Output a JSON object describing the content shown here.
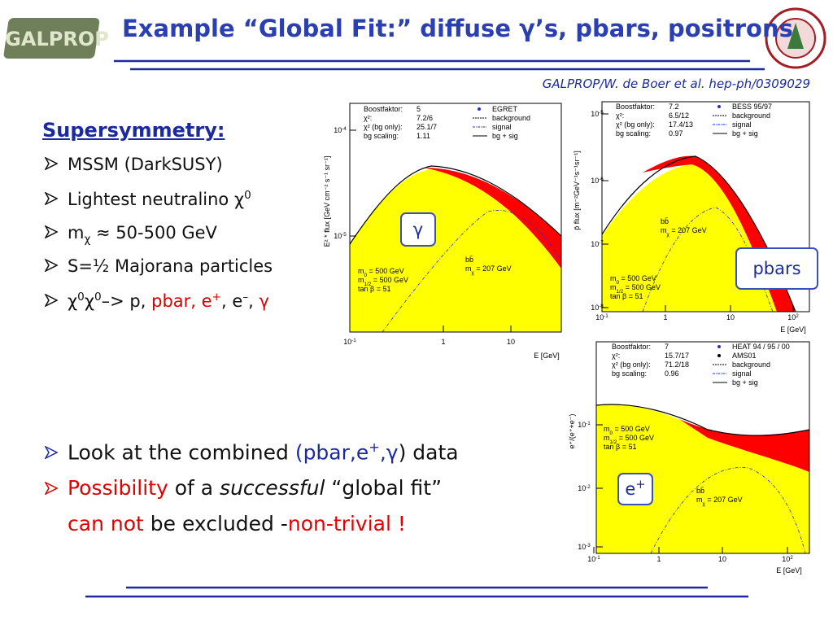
{
  "header": {
    "logo": "GALPROP",
    "title": "Example “Global Fit:” diffuse γ’s, pbars, positrons",
    "reference": "GALPROP/W. de Boer et al. hep-ph/0309029"
  },
  "bullets": {
    "heading": "Supersymmetry:",
    "items": [
      [
        {
          "t": "MSSM (DarkSUSY)"
        }
      ],
      [
        {
          "t": "Lightest neutralino χ"
        },
        {
          "t": "0",
          "sup": 1
        }
      ],
      [
        {
          "t": "m"
        },
        {
          "t": "χ",
          "sub": 1
        },
        {
          "t": " ≈ 50-500 GeV"
        }
      ],
      [
        {
          "t": "S=½ Majorana particles"
        }
      ],
      [
        {
          "t": "χ"
        },
        {
          "t": "0",
          "sup": 1
        },
        {
          "t": "χ"
        },
        {
          "t": "0",
          "sup": 1
        },
        {
          "t": "–> p, "
        },
        {
          "t": "pbar, e",
          "red": 1
        },
        {
          "t": "+",
          "sup": 1,
          "red": 1
        },
        {
          "t": ", e"
        },
        {
          "t": "–",
          "sup": 1
        },
        {
          "t": ", "
        },
        {
          "t": "γ",
          "red": 1
        }
      ]
    ]
  },
  "conclusions": [
    [
      {
        "t": "Look at the combined "
      },
      {
        "t": "(pbar,e",
        "blue": 1
      },
      {
        "t": "+",
        "sup": 1,
        "blue": 1
      },
      {
        "t": ",γ",
        "blue": 1
      },
      {
        "t": ") data"
      }
    ],
    [
      {
        "t": "Possibility",
        "red": 1
      },
      {
        "t": " of a "
      },
      {
        "t": "successful",
        "italic": 1
      },
      {
        "t": " “global fit”"
      },
      {
        "t": "can not",
        "red": 1
      },
      {
        "t": " be excluded -"
      },
      {
        "t": "non-trivial !",
        "red": 1
      }
    ]
  ],
  "plots": [
    {
      "ylabel": "E² * flux [GeV cm⁻² s⁻¹ sr⁻¹]",
      "xlabel": "E [GeV]",
      "badge": [
        {
          "t": "γ"
        }
      ],
      "yticks": [
        [
          {
            "t": "10"
          },
          {
            "t": "-4",
            "sup": 1
          }
        ],
        [
          {
            "t": "10"
          },
          {
            "t": "-5",
            "sup": 1
          }
        ]
      ],
      "xticks": [
        [
          {
            "t": "10"
          },
          {
            "t": "-1",
            "sup": 1
          }
        ],
        [
          {
            "t": "1"
          }
        ],
        [
          {
            "t": "10"
          }
        ]
      ],
      "fit": [
        [
          "Boostfaktor:",
          "5"
        ],
        [
          "χ²:",
          "7.2/6"
        ],
        [
          "χ² (bg only):",
          "25.1/7"
        ],
        [
          "bg scaling:",
          "1.11"
        ]
      ],
      "legend": [
        "EGRET",
        "background",
        "signal",
        "bg + sig"
      ],
      "params": [
        [
          {
            "t": "m"
          },
          {
            "t": "0",
            "sub": 1
          },
          {
            "t": " = 500 GeV"
          }
        ],
        [
          {
            "t": "m"
          },
          {
            "t": "1/2",
            "sub": 1
          },
          {
            "t": " = 500 GeV"
          }
        ],
        [
          {
            "t": "tan β = 51"
          }
        ]
      ],
      "channel": [
        [
          {
            "t": "bb̄"
          }
        ],
        [
          {
            "t": "m"
          },
          {
            "t": "χ",
            "sub": 1
          },
          {
            "t": " = 207 GeV"
          }
        ]
      ]
    },
    {
      "ylabel": "p̄ flux [m⁻²GeV⁻¹s⁻¹sr⁻¹]",
      "xlabel": "E [GeV]",
      "badge": [
        {
          "t": "pbars"
        }
      ],
      "yticks": [
        [
          {
            "t": "10"
          },
          {
            "t": "-5",
            "sup": 1
          }
        ],
        [
          {
            "t": "10"
          },
          {
            "t": "-6",
            "sup": 1
          }
        ],
        [
          {
            "t": "10"
          },
          {
            "t": "-7",
            "sup": 1
          }
        ],
        [
          {
            "t": "10"
          },
          {
            "t": "-8",
            "sup": 1
          }
        ]
      ],
      "xticks": [
        [
          {
            "t": "10"
          },
          {
            "t": "-1",
            "sup": 1
          }
        ],
        [
          {
            "t": "1"
          }
        ],
        [
          {
            "t": "10"
          }
        ],
        [
          {
            "t": "10"
          },
          {
            "t": "2",
            "sup": 1
          }
        ]
      ],
      "fit": [
        [
          "Boostfaktor:",
          "7.2"
        ],
        [
          "χ²:",
          "6.5/12"
        ],
        [
          "χ² (bg only):",
          "17.4/13"
        ],
        [
          "bg scaling:",
          "0.97"
        ]
      ],
      "legend": [
        "BESS 95/97",
        "background",
        "signal",
        "bg + sig"
      ],
      "params": [
        [
          {
            "t": "m"
          },
          {
            "t": "0",
            "sub": 1
          },
          {
            "t": " = 500 GeV"
          }
        ],
        [
          {
            "t": "m"
          },
          {
            "t": "1/2",
            "sub": 1
          },
          {
            "t": " = 500 GeV"
          }
        ],
        [
          {
            "t": "tan β = 51"
          }
        ]
      ],
      "channel": [
        [
          {
            "t": "bb̄"
          }
        ],
        [
          {
            "t": "m"
          },
          {
            "t": "χ",
            "sub": 1
          },
          {
            "t": " = 207 GeV"
          }
        ]
      ]
    },
    {
      "ylabel": "e⁺/(e⁺+e⁻)",
      "xlabel": "E [GeV]",
      "badge": [
        {
          "t": "e"
        },
        {
          "t": "+",
          "sup": 1
        }
      ],
      "yticks": [
        [
          {
            "t": "10"
          },
          {
            "t": "-1",
            "sup": 1
          }
        ],
        [
          {
            "t": "10"
          },
          {
            "t": "-2",
            "sup": 1
          }
        ],
        [
          {
            "t": "10"
          },
          {
            "t": "-3",
            "sup": 1
          }
        ]
      ],
      "xticks": [
        [
          {
            "t": "10"
          },
          {
            "t": "-1",
            "sup": 1
          }
        ],
        [
          {
            "t": "1"
          }
        ],
        [
          {
            "t": "10"
          }
        ],
        [
          {
            "t": "10"
          },
          {
            "t": "2",
            "sup": 1
          }
        ]
      ],
      "fit": [
        [
          "Boostfaktor:",
          "7"
        ],
        [
          "χ²:",
          "15.7/17"
        ],
        [
          "χ² (bg only):",
          "71.2/18"
        ],
        [
          "bg scaling:",
          "0.96"
        ]
      ],
      "legend": [
        "HEAT 94 / 95 / 00",
        "AMS01",
        "background",
        "signal",
        "bg + sig"
      ],
      "params": [
        [
          {
            "t": "m"
          },
          {
            "t": "0",
            "sub": 1
          },
          {
            "t": " = 500 GeV"
          }
        ],
        [
          {
            "t": "m"
          },
          {
            "t": "1/2",
            "sub": 1
          },
          {
            "t": " = 500 GeV"
          }
        ],
        [
          {
            "t": "tan β = 51"
          }
        ]
      ],
      "channel": [
        [
          {
            "t": "bb̄"
          }
        ],
        [
          {
            "t": "m"
          },
          {
            "t": "χ",
            "sub": 1
          },
          {
            "t": " = 207 GeV"
          }
        ]
      ]
    }
  ]
}
